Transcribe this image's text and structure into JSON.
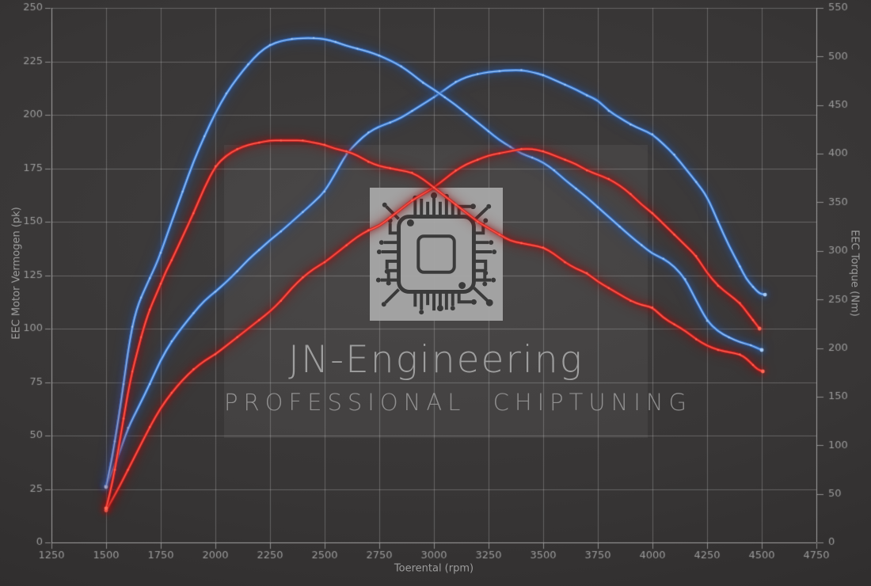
{
  "watermark": {
    "title": "JN-Engineering",
    "subtitle": "PROFESSIONAL CHIPTUNING",
    "logo": "microchip-circuit-icon"
  },
  "colors": {
    "background_center": "#403e3e",
    "background_edge": "#282626",
    "grid_line": "rgba(210,210,210,0.30)",
    "axis_line": "rgba(215,215,215,0.55)",
    "tick_label": "#9c9c9c",
    "torque_stroke": "#3579d6",
    "torque_glow": "#27539c",
    "torque_core": "#a8ccf5",
    "power_stroke": "#d42020",
    "power_glow": "#8f1010",
    "power_core": "#ff6a58",
    "watermark_text": "#b2b2b2"
  },
  "chart_data": {
    "type": "line",
    "title": "",
    "xlabel": "Toerental (rpm)",
    "ylabel_left": "EEC Motor Vermogen (pk)",
    "ylabel_right": "EEC Torque (Nm)",
    "x_range": [
      1250,
      4750
    ],
    "y_left_range": [
      0,
      250
    ],
    "y_right_range": [
      0,
      550
    ],
    "x_ticks": [
      1250,
      1500,
      1750,
      2000,
      2250,
      2500,
      2750,
      3000,
      3250,
      3500,
      3750,
      4000,
      4250,
      4500,
      4750
    ],
    "y_left_ticks": [
      0,
      25,
      50,
      75,
      100,
      125,
      150,
      175,
      200,
      225,
      250
    ],
    "y_right_ticks": [
      0,
      50,
      100,
      150,
      200,
      250,
      300,
      350,
      400,
      450,
      500,
      550
    ],
    "grid": "horizontal lines at left-axis ticks, vertical lines at x ticks",
    "legend": "none",
    "series": [
      {
        "name": "torque_run_2_stock",
        "axis": "right",
        "unit": "Nm",
        "color_role": "torque",
        "peak": {
          "rpm": 3400,
          "value": 486
        },
        "points": [
          [
            1500,
            58
          ],
          [
            1550,
            85
          ],
          [
            1600,
            118
          ],
          [
            1650,
            140
          ],
          [
            1700,
            163
          ],
          [
            1750,
            188
          ],
          [
            1800,
            207
          ],
          [
            1850,
            222
          ],
          [
            1900,
            236
          ],
          [
            1950,
            249
          ],
          [
            2000,
            258
          ],
          [
            2050,
            268
          ],
          [
            2100,
            279
          ],
          [
            2150,
            291
          ],
          [
            2200,
            301
          ],
          [
            2250,
            311
          ],
          [
            2300,
            320
          ],
          [
            2350,
            330
          ],
          [
            2400,
            340
          ],
          [
            2450,
            350
          ],
          [
            2500,
            361
          ],
          [
            2550,
            380
          ],
          [
            2600,
            400
          ],
          [
            2650,
            412
          ],
          [
            2700,
            422
          ],
          [
            2750,
            428
          ],
          [
            2800,
            432
          ],
          [
            2850,
            437
          ],
          [
            2900,
            444
          ],
          [
            2950,
            451
          ],
          [
            3000,
            458
          ],
          [
            3050,
            466
          ],
          [
            3100,
            474
          ],
          [
            3150,
            479
          ],
          [
            3200,
            482
          ],
          [
            3250,
            484
          ],
          [
            3300,
            485
          ],
          [
            3350,
            486
          ],
          [
            3400,
            486
          ],
          [
            3450,
            484
          ],
          [
            3500,
            481
          ],
          [
            3550,
            476
          ],
          [
            3600,
            471
          ],
          [
            3650,
            466
          ],
          [
            3700,
            460
          ],
          [
            3750,
            455
          ],
          [
            3800,
            444
          ],
          [
            3850,
            437
          ],
          [
            3900,
            430
          ],
          [
            3950,
            425
          ],
          [
            4000,
            420
          ],
          [
            4050,
            410
          ],
          [
            4100,
            399
          ],
          [
            4150,
            385
          ],
          [
            4200,
            371
          ],
          [
            4250,
            356
          ],
          [
            4300,
            330
          ],
          [
            4350,
            305
          ],
          [
            4400,
            284
          ],
          [
            4430,
            271
          ],
          [
            4460,
            263
          ],
          [
            4490,
            256
          ],
          [
            4515,
            255
          ]
        ]
      },
      {
        "name": "torque_run_1_tuned",
        "axis": "right",
        "unit": "Nm",
        "color_role": "torque",
        "peak": {
          "rpm": 2425,
          "value": 519
        },
        "points": [
          [
            1500,
            57
          ],
          [
            1520,
            78
          ],
          [
            1540,
            104
          ],
          [
            1560,
            132
          ],
          [
            1580,
            163
          ],
          [
            1600,
            196
          ],
          [
            1620,
            222
          ],
          [
            1640,
            240
          ],
          [
            1660,
            252
          ],
          [
            1680,
            262
          ],
          [
            1700,
            272
          ],
          [
            1725,
            284
          ],
          [
            1750,
            298
          ],
          [
            1800,
            330
          ],
          [
            1850,
            361
          ],
          [
            1900,
            392
          ],
          [
            1950,
            418
          ],
          [
            2000,
            442
          ],
          [
            2050,
            462
          ],
          [
            2100,
            478
          ],
          [
            2150,
            492
          ],
          [
            2200,
            504
          ],
          [
            2250,
            512
          ],
          [
            2300,
            516
          ],
          [
            2350,
            518
          ],
          [
            2400,
            519
          ],
          [
            2450,
            519
          ],
          [
            2500,
            518
          ],
          [
            2550,
            515
          ],
          [
            2600,
            511
          ],
          [
            2650,
            508
          ],
          [
            2700,
            505
          ],
          [
            2750,
            501
          ],
          [
            2800,
            496
          ],
          [
            2850,
            490
          ],
          [
            2900,
            482
          ],
          [
            2950,
            473
          ],
          [
            3000,
            466
          ],
          [
            3050,
            458
          ],
          [
            3100,
            450
          ],
          [
            3150,
            441
          ],
          [
            3200,
            432
          ],
          [
            3250,
            423
          ],
          [
            3300,
            414
          ],
          [
            3350,
            407
          ],
          [
            3400,
            400
          ],
          [
            3450,
            396
          ],
          [
            3500,
            391
          ],
          [
            3550,
            383
          ],
          [
            3600,
            373
          ],
          [
            3650,
            364
          ],
          [
            3700,
            355
          ],
          [
            3750,
            345
          ],
          [
            3800,
            335
          ],
          [
            3850,
            325
          ],
          [
            3900,
            315
          ],
          [
            3950,
            306
          ],
          [
            4000,
            297
          ],
          [
            4050,
            292
          ],
          [
            4100,
            284
          ],
          [
            4150,
            271
          ],
          [
            4200,
            249
          ],
          [
            4250,
            228
          ],
          [
            4300,
            217
          ],
          [
            4350,
            211
          ],
          [
            4400,
            206
          ],
          [
            4450,
            203
          ],
          [
            4480,
            200
          ],
          [
            4500,
            198
          ]
        ]
      },
      {
        "name": "power_run_2_stock",
        "axis": "left",
        "unit": "pk",
        "color_role": "power",
        "peak": {
          "rpm": 3425,
          "value": 184
        },
        "points": [
          [
            1500,
            15
          ],
          [
            1550,
            24
          ],
          [
            1600,
            34
          ],
          [
            1650,
            44
          ],
          [
            1700,
            54
          ],
          [
            1750,
            63
          ],
          [
            1800,
            70
          ],
          [
            1850,
            76
          ],
          [
            1900,
            81
          ],
          [
            1950,
            85
          ],
          [
            2000,
            88
          ],
          [
            2050,
            92
          ],
          [
            2100,
            96
          ],
          [
            2150,
            100
          ],
          [
            2200,
            104
          ],
          [
            2250,
            108
          ],
          [
            2300,
            113
          ],
          [
            2350,
            119
          ],
          [
            2400,
            124
          ],
          [
            2450,
            128
          ],
          [
            2500,
            131
          ],
          [
            2550,
            135
          ],
          [
            2600,
            139
          ],
          [
            2650,
            143
          ],
          [
            2700,
            146
          ],
          [
            2750,
            148
          ],
          [
            2800,
            152
          ],
          [
            2850,
            156
          ],
          [
            2900,
            160
          ],
          [
            2950,
            163
          ],
          [
            3000,
            166
          ],
          [
            3050,
            170
          ],
          [
            3100,
            174
          ],
          [
            3150,
            177
          ],
          [
            3200,
            179
          ],
          [
            3250,
            181
          ],
          [
            3300,
            182
          ],
          [
            3350,
            183
          ],
          [
            3400,
            184
          ],
          [
            3450,
            184
          ],
          [
            3500,
            183
          ],
          [
            3550,
            181
          ],
          [
            3600,
            179
          ],
          [
            3650,
            177
          ],
          [
            3700,
            174
          ],
          [
            3750,
            172
          ],
          [
            3800,
            170
          ],
          [
            3850,
            167
          ],
          [
            3900,
            163
          ],
          [
            3950,
            158
          ],
          [
            4000,
            154
          ],
          [
            4050,
            149
          ],
          [
            4100,
            144
          ],
          [
            4150,
            139
          ],
          [
            4200,
            134
          ],
          [
            4250,
            126
          ],
          [
            4300,
            120
          ],
          [
            4350,
            116
          ],
          [
            4400,
            112
          ],
          [
            4430,
            108
          ],
          [
            4460,
            104
          ],
          [
            4490,
            100
          ]
        ]
      },
      {
        "name": "power_run_1_tuned",
        "axis": "left",
        "unit": "pk",
        "color_role": "power",
        "peak": {
          "rpm": 2350,
          "value": 188
        },
        "points": [
          [
            1500,
            16
          ],
          [
            1520,
            24
          ],
          [
            1540,
            34
          ],
          [
            1560,
            46
          ],
          [
            1580,
            58
          ],
          [
            1600,
            70
          ],
          [
            1620,
            80
          ],
          [
            1640,
            88
          ],
          [
            1660,
            96
          ],
          [
            1680,
            103
          ],
          [
            1700,
            109
          ],
          [
            1725,
            115
          ],
          [
            1750,
            121
          ],
          [
            1775,
            127
          ],
          [
            1800,
            132
          ],
          [
            1850,
            143
          ],
          [
            1900,
            154
          ],
          [
            1950,
            166
          ],
          [
            2000,
            176
          ],
          [
            2050,
            181
          ],
          [
            2100,
            184
          ],
          [
            2150,
            186
          ],
          [
            2200,
            187
          ],
          [
            2250,
            188
          ],
          [
            2300,
            188
          ],
          [
            2350,
            188
          ],
          [
            2400,
            188
          ],
          [
            2450,
            187
          ],
          [
            2500,
            186
          ],
          [
            2550,
            184
          ],
          [
            2600,
            183
          ],
          [
            2650,
            181
          ],
          [
            2700,
            178
          ],
          [
            2750,
            176
          ],
          [
            2800,
            175
          ],
          [
            2850,
            174
          ],
          [
            2900,
            173
          ],
          [
            2950,
            170
          ],
          [
            3000,
            166
          ],
          [
            3050,
            162
          ],
          [
            3100,
            158
          ],
          [
            3150,
            154
          ],
          [
            3200,
            150
          ],
          [
            3250,
            147
          ],
          [
            3300,
            144
          ],
          [
            3350,
            141
          ],
          [
            3400,
            140
          ],
          [
            3450,
            139
          ],
          [
            3500,
            138
          ],
          [
            3550,
            135
          ],
          [
            3600,
            131
          ],
          [
            3650,
            128
          ],
          [
            3700,
            126
          ],
          [
            3750,
            122
          ],
          [
            3800,
            119
          ],
          [
            3850,
            116
          ],
          [
            3900,
            113
          ],
          [
            3950,
            111
          ],
          [
            4000,
            110
          ],
          [
            4050,
            105
          ],
          [
            4100,
            102
          ],
          [
            4150,
            99
          ],
          [
            4200,
            95
          ],
          [
            4250,
            92
          ],
          [
            4300,
            90
          ],
          [
            4350,
            89
          ],
          [
            4400,
            88
          ],
          [
            4430,
            86
          ],
          [
            4460,
            83
          ],
          [
            4480,
            81
          ],
          [
            4505,
            80
          ]
        ]
      }
    ]
  }
}
